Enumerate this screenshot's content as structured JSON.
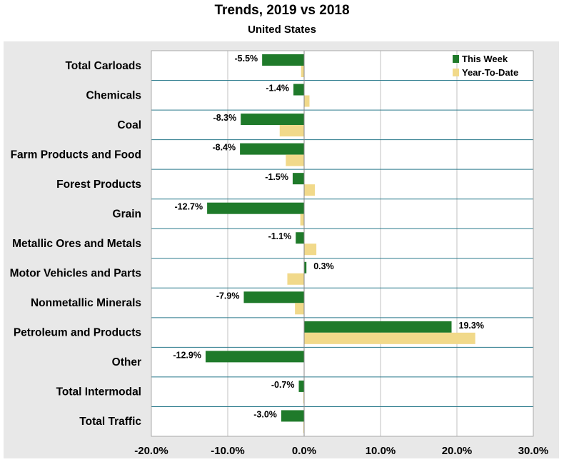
{
  "chart_data": {
    "type": "bar",
    "orientation": "horizontal",
    "title": "Trends, 2019 vs 2018",
    "subtitle": "United States",
    "categories": [
      "Total Carloads",
      "Chemicals",
      "Coal",
      "Farm Products and Food",
      "Forest Products",
      "Grain",
      "Metallic Ores and Metals",
      "Motor Vehicles and Parts",
      "Nonmetallic Minerals",
      "Petroleum and Products",
      "Other",
      "Total Intermodal",
      "Total Traffic"
    ],
    "series": [
      {
        "name": "This Week",
        "color": "#1f7a2a",
        "values": [
          -5.5,
          -1.4,
          -8.3,
          -8.4,
          -1.5,
          -12.7,
          -1.1,
          0.3,
          -7.9,
          19.3,
          -12.9,
          -0.7,
          -3.0
        ],
        "data_labels": [
          "-5.5%",
          "-1.4%",
          "-8.3%",
          "-8.4%",
          "-1.5%",
          "-12.7%",
          "-1.1%",
          "0.3%",
          "-7.9%",
          "19.3%",
          "-12.9%",
          "-0.7%",
          "-3.0%"
        ]
      },
      {
        "name": "Year-To-Date",
        "color": "#f1d98a",
        "values": [
          -0.4,
          0.7,
          -3.2,
          -2.4,
          1.4,
          -0.5,
          1.6,
          -2.2,
          -1.2,
          22.4,
          0.0,
          -0.1,
          -0.1
        ]
      }
    ],
    "xlim": [
      -20,
      30
    ],
    "xticks": [
      -20,
      -10,
      0,
      10,
      20,
      30
    ],
    "xtick_labels": [
      "-20.0%",
      "-10.0%",
      "0.0%",
      "10.0%",
      "20.0%",
      "30.0%"
    ],
    "xlabel": "",
    "ylabel": "",
    "grid": "vertical",
    "legend_position": "top-right"
  },
  "colors": {
    "panel_background": "#e8e8e8",
    "plot_background": "#ffffff",
    "category_separator": "#2a7a8c",
    "gridline": "#c0c0c0"
  }
}
